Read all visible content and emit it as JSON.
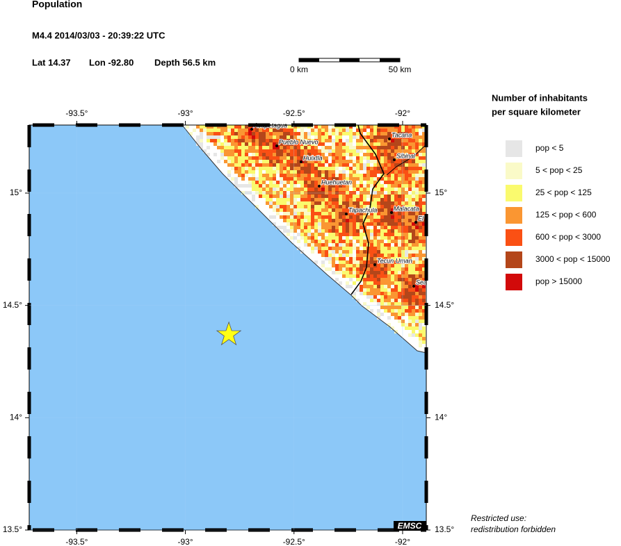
{
  "header": {
    "title": "Population",
    "event": "M4.4  2014/03/03 - 20:39:22 UTC",
    "lat": "Lat 14.37",
    "lon": "Lon -92.80",
    "depth": "Depth  56.5 km"
  },
  "scale": {
    "start": "0 km",
    "end": "50 km"
  },
  "map": {
    "xlim": [
      -93.719,
      -91.891
    ],
    "ylim": [
      13.5,
      15.303
    ],
    "xticks": [
      {
        "value": -93.5,
        "label": "-93.5°"
      },
      {
        "value": -93,
        "label": "-93°"
      },
      {
        "value": -92.5,
        "label": "-92.5°"
      },
      {
        "value": -92,
        "label": "-92°"
      }
    ],
    "yticks": [
      {
        "value": 15,
        "label": "15°"
      },
      {
        "value": 14.5,
        "label": "14.5°"
      },
      {
        "value": 14,
        "label": "14°"
      },
      {
        "value": 13.5,
        "label": "13.5°"
      }
    ],
    "epicenter": {
      "lat": 14.37,
      "lon": -92.8
    },
    "towns": [
      "Acapetagua",
      "Pueblo Nuevo",
      "Huixtla",
      "Huehuetan",
      "Tapachula",
      "Malacata",
      "Tacana",
      "Sibinal",
      "El",
      "Tecun Uman",
      "Sea"
    ],
    "badge": "EMSC"
  },
  "legend": {
    "title": [
      "Number of inhabitants",
      "per square kilometer"
    ],
    "items": [
      {
        "label": "pop < 5",
        "color": "#e6e6e6"
      },
      {
        "label": "5 < pop < 25",
        "color": "#fafac8"
      },
      {
        "label": "25 < pop < 125",
        "color": "#fafa6e"
      },
      {
        "label": "125 < pop < 600",
        "color": "#fa9632"
      },
      {
        "label": "600 < pop < 3000",
        "color": "#fa5014"
      },
      {
        "label": "3000 < pop < 15000",
        "color": "#b4461a"
      },
      {
        "label": "pop > 15000",
        "color": "#d20a0a"
      }
    ]
  },
  "footer": [
    "Restricted use:",
    "redistribution forbidden"
  ]
}
